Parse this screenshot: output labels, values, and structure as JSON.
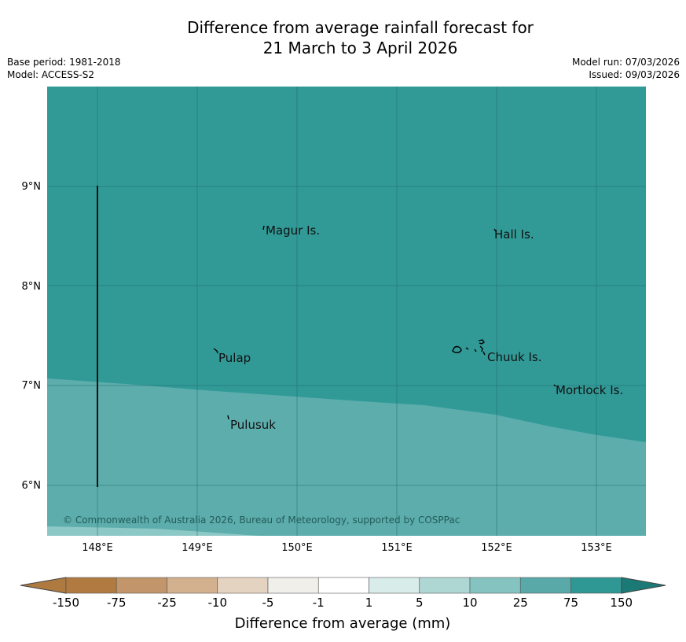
{
  "title": {
    "line1": "Difference from average rainfall forecast for",
    "line2": "21 March to 3 April 2026"
  },
  "info": {
    "base_period": "Base period: 1981-2018",
    "model": "Model: ACCESS-S2",
    "model_run": "Model run: 07/03/2026",
    "issued": "Issued: 09/03/2026"
  },
  "map": {
    "lon_ticks": [
      "148°E",
      "149°E",
      "150°E",
      "151°E",
      "152°E",
      "153°E"
    ],
    "lat_ticks": [
      "9°N",
      "8°N",
      "7°N",
      "6°N"
    ],
    "places": [
      "Magur Is.",
      "Hall Is.",
      "Pulap",
      "Chuuk Is.",
      "Mortlock Is.",
      "Pulusuk"
    ],
    "copyright": "© Commonwealth of Australia 2026, Bureau of Meteorology, supported by COSPPac"
  },
  "colorbar": {
    "title": "Difference from average (mm)",
    "labels": [
      "-150",
      "-75",
      "-25",
      "-10",
      "-5",
      "-1",
      "1",
      "5",
      "10",
      "25",
      "75",
      "150"
    ],
    "colors": [
      "#ae7a3f",
      "#bf9467",
      "#d2b08d",
      "#e4d3c3",
      "#efede8",
      "#ffffff",
      "#d8ecea",
      "#aed6d3",
      "#84c3bf",
      "#58a9a7",
      "#309894",
      "#1b7a76"
    ]
  }
}
